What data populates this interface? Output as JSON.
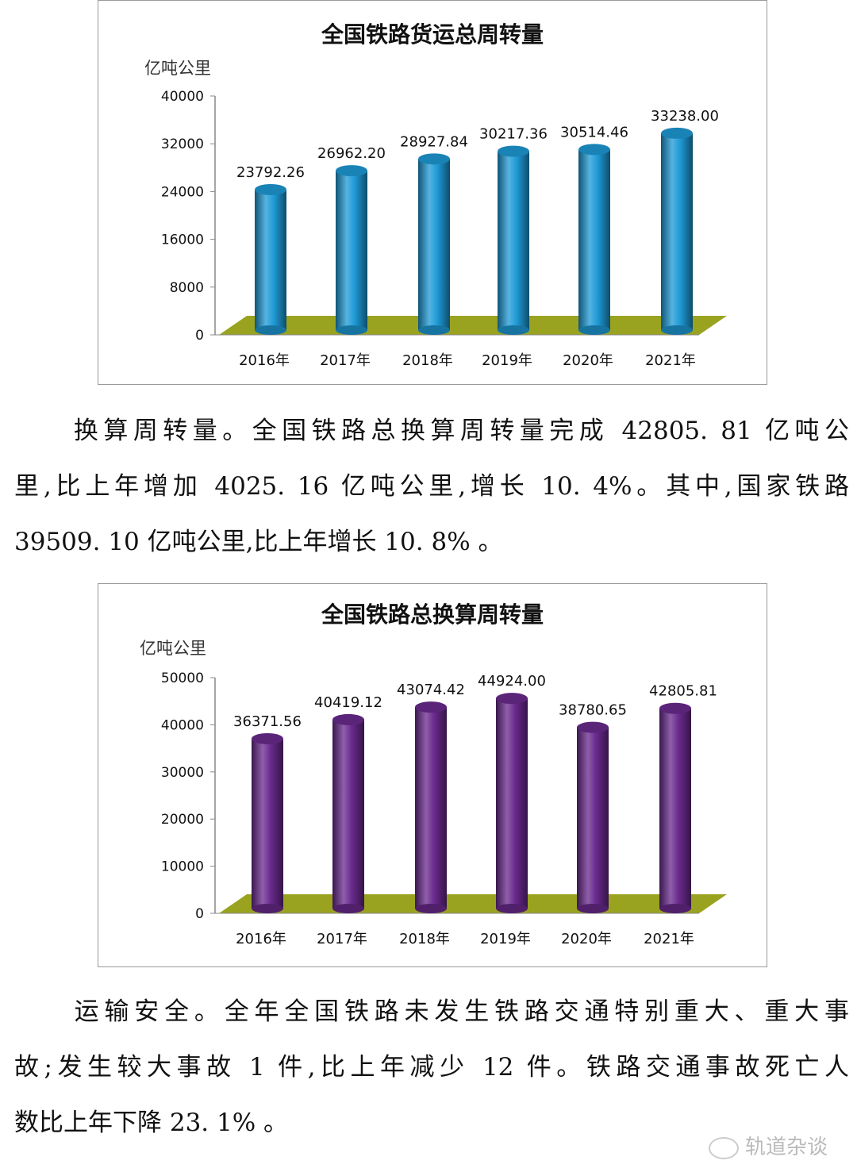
{
  "chart_data": [
    {
      "type": "bar",
      "title": "全国铁路货运总周转量",
      "ylabel": "亿吨公里",
      "categories": [
        "2016年",
        "2017年",
        "2018年",
        "2019年",
        "2020年",
        "2021年"
      ],
      "values": [
        23792.26,
        26962.2,
        28927.84,
        30217.36,
        30514.46,
        33238.0
      ],
      "value_labels": [
        "23792.26",
        "26962.20",
        "28927.84",
        "30217.36",
        "30514.46",
        "33238.00"
      ],
      "yticks": [
        0,
        8000,
        16000,
        24000,
        32000,
        40000
      ],
      "ylim": [
        0,
        40000
      ],
      "bar_color": "#1e9ad6",
      "floor_color": "#9aa31f",
      "grid": false
    },
    {
      "type": "bar",
      "title": "全国铁路总换算周转量",
      "ylabel": "亿吨公里",
      "categories": [
        "2016年",
        "2017年",
        "2018年",
        "2019年",
        "2020年",
        "2021年"
      ],
      "values": [
        36371.56,
        40419.12,
        43074.42,
        44924.0,
        38780.65,
        42805.81
      ],
      "value_labels": [
        "36371.56",
        "40419.12",
        "43074.42",
        "44924.00",
        "38780.65",
        "42805.81"
      ],
      "yticks": [
        0,
        10000,
        20000,
        30000,
        40000,
        50000
      ],
      "ylim": [
        0,
        50000
      ],
      "bar_color": "#6a2a8e",
      "floor_color": "#9aa31f",
      "grid": false
    }
  ],
  "paragraphs": [
    {
      "lines": [
        "　　换算周转量。全国铁路总换算周转量完成 42805. 81 亿吨公",
        "里,比上年增加 4025. 16 亿吨公里,增长 10. 4%。其中,国家铁路",
        "39509. 10 亿吨公里,比上年增长 10. 8% 。"
      ]
    },
    {
      "lines": [
        "　　运输安全。全年全国铁路未发生铁路交通特别重大、重大事",
        "故;发生较大事故 1 件,比上年减少 12 件。铁路交通事故死亡人",
        "数比上年下降 23. 1% 。"
      ]
    }
  ],
  "watermark": "轨道杂谈"
}
